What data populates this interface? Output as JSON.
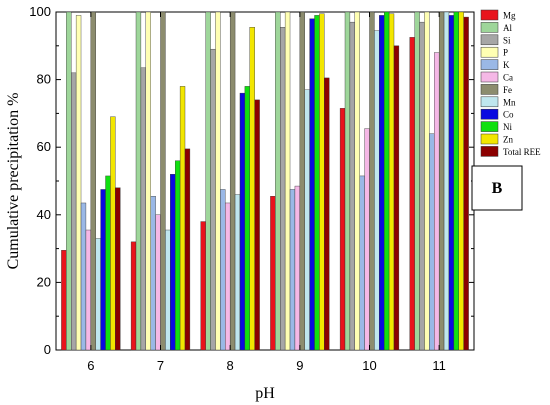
{
  "chart_data": {
    "type": "bar",
    "title": "",
    "xlabel": "pH",
    "ylabel": "Cumulative precipitation %",
    "ylim": [
      0,
      100
    ],
    "yticks": [
      "0",
      "20",
      "40",
      "60",
      "80",
      "100"
    ],
    "categories": [
      "6",
      "7",
      "8",
      "9",
      "10",
      "11"
    ],
    "panel_label": "B",
    "legend_placement": "top-right",
    "grid": false,
    "series": [
      {
        "name": "Mg",
        "color": "#e8141c",
        "values": [
          29.5,
          32,
          38,
          45.5,
          71.5,
          92.5
        ]
      },
      {
        "name": "Al",
        "color": "#9ed69a",
        "values": [
          100,
          100,
          100,
          100,
          100,
          100
        ]
      },
      {
        "name": "Si",
        "color": "#a6a6a6",
        "values": [
          82,
          83.5,
          89,
          95.5,
          97,
          97
        ]
      },
      {
        "name": "P",
        "color": "#ffffb3",
        "values": [
          99,
          100,
          100,
          100,
          100,
          100
        ]
      },
      {
        "name": "K",
        "color": "#9ab8e6",
        "values": [
          43.5,
          45.5,
          47.5,
          47.5,
          51.5,
          64
        ]
      },
      {
        "name": "Ca",
        "color": "#f5b8e6",
        "values": [
          35.5,
          40,
          43.5,
          48.5,
          65.5,
          88
        ]
      },
      {
        "name": "Fe",
        "color": "#8c8c6e",
        "values": [
          100,
          100,
          100,
          100,
          100,
          100
        ]
      },
      {
        "name": "Mn",
        "color": "#bfe6ee",
        "values": [
          33,
          35.5,
          46,
          77,
          94.5,
          100
        ]
      },
      {
        "name": "Co",
        "color": "#0a0ae0",
        "values": [
          47.5,
          52,
          76,
          98,
          99,
          99
        ]
      },
      {
        "name": "Ni",
        "color": "#10e010",
        "values": [
          51.5,
          56,
          78,
          99,
          100,
          100
        ]
      },
      {
        "name": "Zn",
        "color": "#f2e600",
        "values": [
          69,
          78,
          95.5,
          99.5,
          99.5,
          100
        ]
      },
      {
        "name": "Total REE",
        "color": "#8b0000",
        "values": [
          48,
          59.5,
          74,
          80.5,
          90,
          98.5
        ]
      }
    ]
  }
}
